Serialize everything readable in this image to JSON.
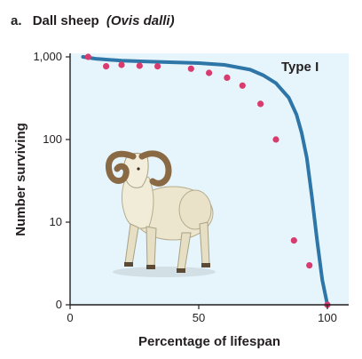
{
  "figure": {
    "panel": "a.",
    "title_main": "Dall sheep",
    "title_italic": "(Ovis dalli)"
  },
  "chart_data": {
    "type": "line",
    "xlabel": "Percentage of lifespan",
    "ylabel": "Number surviving",
    "annotation": "Type I",
    "x_ticks": [
      "0",
      "50",
      "100"
    ],
    "x_tick_values": [
      0,
      50,
      100
    ],
    "y_ticks": [
      "0",
      "10",
      "100",
      "1,000"
    ],
    "y_tick_values": [
      0,
      10,
      100,
      1000
    ],
    "xlim": [
      0,
      100
    ],
    "ylim": [
      0,
      1000
    ],
    "yscale": "log",
    "grid": false,
    "colors": {
      "plot_bg": "#e6f5fc",
      "curve": "#2e75a8",
      "points": "#d83b6e",
      "axis": "#231f20"
    },
    "curve": {
      "x": [
        5,
        10,
        20,
        30,
        40,
        50,
        60,
        70,
        75,
        80,
        85,
        88,
        90,
        92,
        94,
        96,
        98,
        100
      ],
      "y": [
        1000,
        950,
        900,
        880,
        860,
        840,
        800,
        700,
        600,
        480,
        320,
        200,
        120,
        60,
        20,
        6,
        2,
        0
      ]
    },
    "points": {
      "x": [
        7,
        14,
        20,
        27,
        34,
        47,
        54,
        61,
        67,
        74,
        80,
        87,
        93,
        100
      ],
      "y": [
        1000,
        770,
        800,
        780,
        770,
        720,
        640,
        560,
        450,
        270,
        100,
        6,
        3,
        0
      ]
    }
  }
}
